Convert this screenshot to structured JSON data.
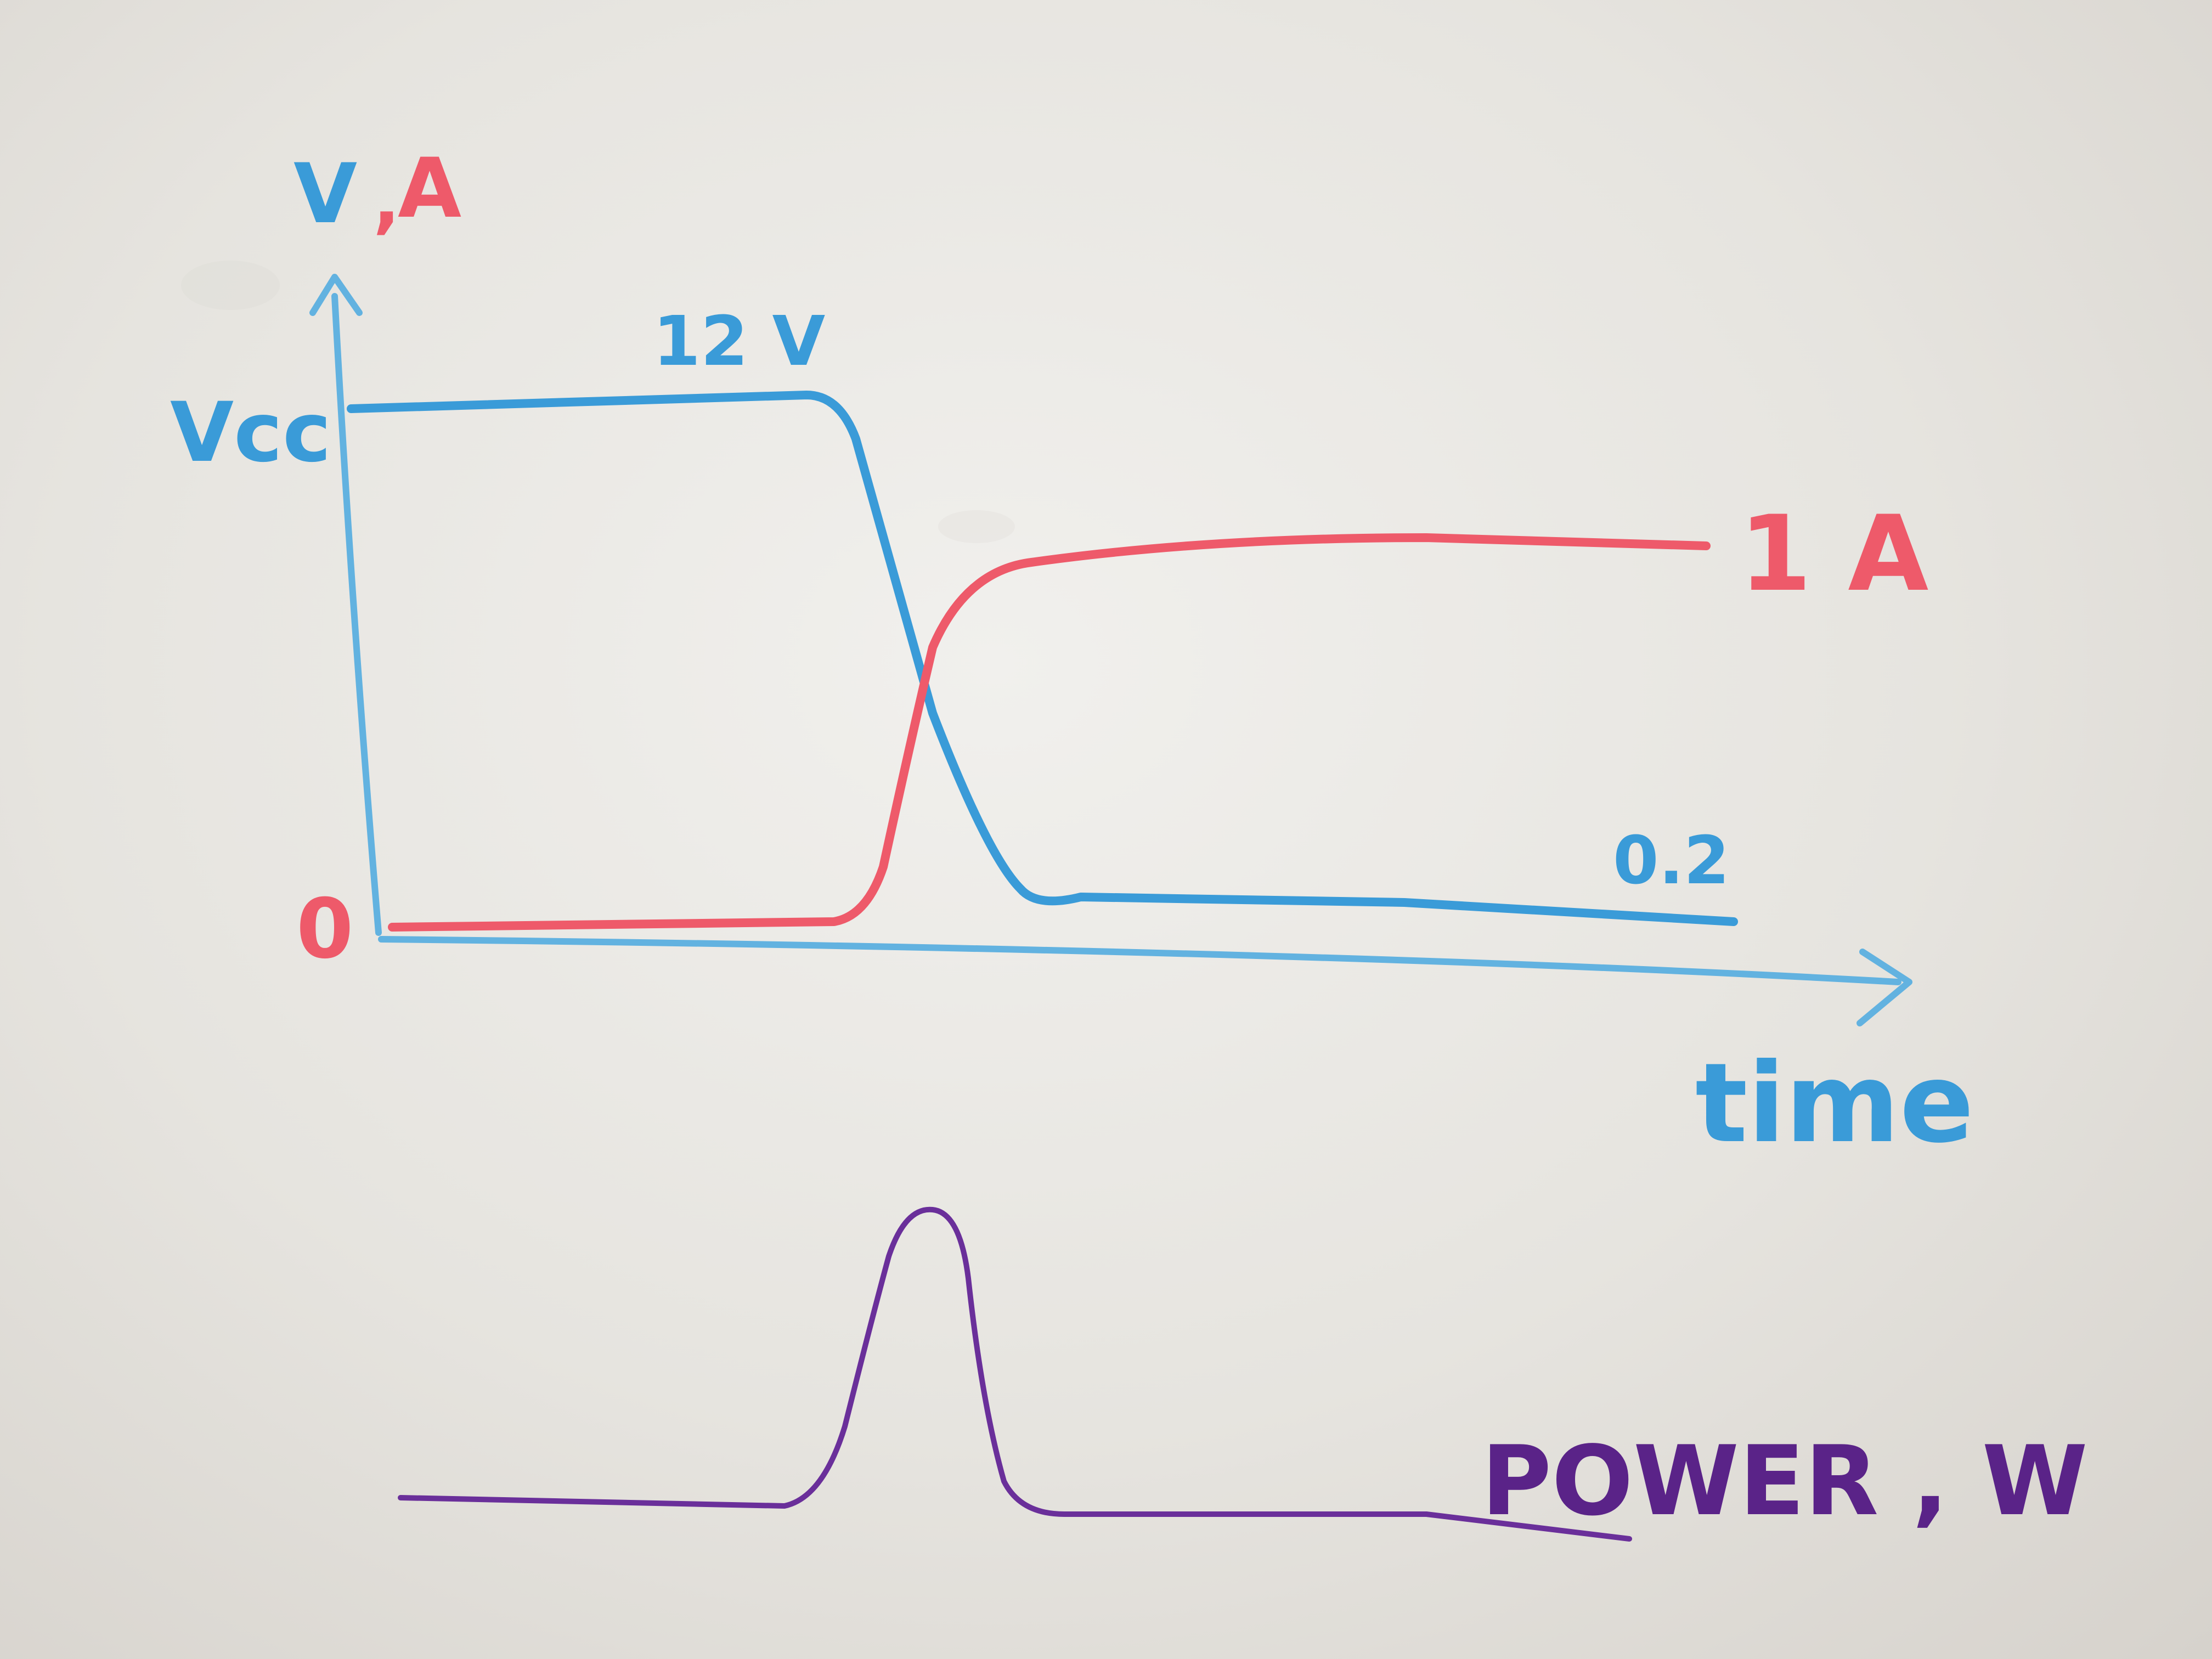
{
  "labels": {
    "y_axis_v": "V",
    "y_axis_comma": ",",
    "y_axis_a": "A",
    "vcc": "Vcc",
    "zero": "0",
    "twelve_v": "12 V",
    "one_a": "1 A",
    "low_voltage": "0.2",
    "x_axis": "time",
    "power": "POWER , W"
  },
  "colors": {
    "voltage": "#3a9bd8",
    "current": "#ee5a6a",
    "power": "#6a2f9a",
    "axis": "#62b2e0"
  }
}
